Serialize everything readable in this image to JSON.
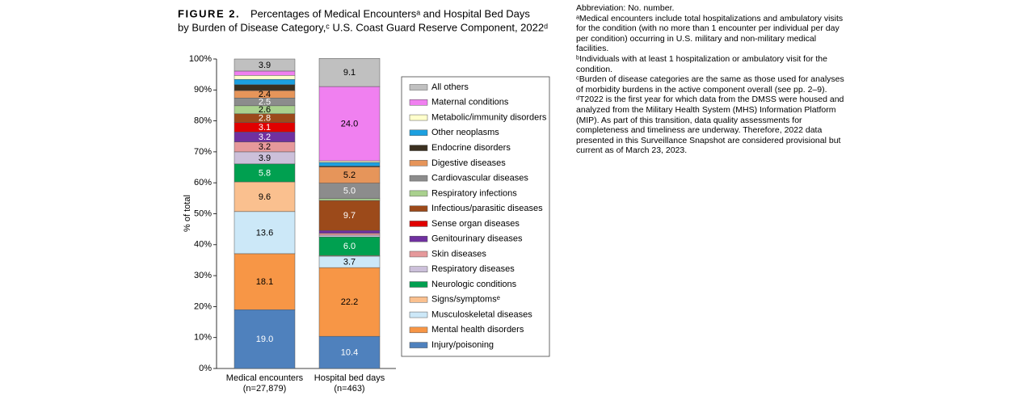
{
  "chart_data": {
    "type": "stacked_bar",
    "figure_label": "FIGURE 2.",
    "title_lines": [
      "Percentages of Medical Encountersᵃ and Hospital Bed Days",
      "by Burden of Disease Category,ᶜ U.S. Coast Guard Reserve Component, 2022ᵈ"
    ],
    "y_label": "% of total",
    "categories": [
      "Medical encounters",
      "Hospital bed days"
    ],
    "category_counts": [
      "(n=27,879)",
      "(n=463)"
    ],
    "ylim": [
      0,
      100
    ],
    "yticks": [
      {
        "value": 0,
        "label": "0%"
      },
      {
        "value": 10,
        "label": "10%"
      },
      {
        "value": 20,
        "label": "20%"
      },
      {
        "value": 30,
        "label": "30%"
      },
      {
        "value": 40,
        "label": "40%"
      },
      {
        "value": 50,
        "label": "50%"
      },
      {
        "value": 60,
        "label": "60%"
      },
      {
        "value": 70,
        "label": "70%"
      },
      {
        "value": 80,
        "label": "80%"
      },
      {
        "value": 90,
        "label": "90%"
      },
      {
        "value": 100,
        "label": "100%"
      }
    ],
    "series": [
      {
        "name": "Injury/poisoning",
        "color": "#4f81bd",
        "values": [
          19.0,
          10.4
        ],
        "value_labels": [
          "19.0",
          "10.4"
        ]
      },
      {
        "name": "Mental health disorders",
        "color": "#f79646",
        "values": [
          18.1,
          22.2
        ],
        "value_labels": [
          "18.1",
          "22.2"
        ]
      },
      {
        "name": "Musculoskeletal diseases",
        "color": "#cce8f8",
        "values": [
          13.6,
          3.7
        ],
        "value_labels": [
          "13.6",
          "3.7"
        ]
      },
      {
        "name": "Signs/symptomsᵉ",
        "color": "#fac08f",
        "values": [
          9.6,
          0.2
        ],
        "value_labels": [
          "9.6",
          null
        ]
      },
      {
        "name": "Neurologic conditions",
        "color": "#00a050",
        "values": [
          5.8,
          6.0
        ],
        "value_labels": [
          "5.8",
          "6.0"
        ]
      },
      {
        "name": "Respiratory diseases",
        "color": "#ccc0da",
        "values": [
          3.9,
          0.6
        ],
        "value_labels": [
          "3.9",
          null
        ]
      },
      {
        "name": "Skin diseases",
        "color": "#e6999b",
        "values": [
          3.2,
          0.6
        ],
        "value_labels": [
          "3.2",
          null
        ]
      },
      {
        "name": "Genitourinary diseases",
        "color": "#7030a0",
        "values": [
          3.2,
          0.9
        ],
        "value_labels": [
          "3.2",
          null
        ]
      },
      {
        "name": "Sense organ diseases",
        "color": "#e00000",
        "values": [
          3.1,
          0.0
        ],
        "value_labels": [
          "3.1",
          null
        ]
      },
      {
        "name": "Infectious/parasitic diseases",
        "color": "#9c4a1a",
        "values": [
          2.8,
          9.7
        ],
        "value_labels": [
          "2.8",
          "9.7"
        ]
      },
      {
        "name": "Respiratory infections",
        "color": "#a9d18e",
        "values": [
          2.6,
          0.6
        ],
        "value_labels": [
          "2.6",
          null
        ]
      },
      {
        "name": "Cardiovascular diseases",
        "color": "#8c8c8c",
        "values": [
          2.5,
          5.0
        ],
        "value_labels": [
          "2.5",
          "5.0"
        ]
      },
      {
        "name": "Digestive diseases",
        "color": "#e6955a",
        "values": [
          2.4,
          5.2
        ],
        "value_labels": [
          "2.4",
          "5.2"
        ]
      },
      {
        "name": "Endocrine disorders",
        "color": "#3b3020",
        "values": [
          1.9,
          0.3
        ],
        "value_labels": [
          null,
          null
        ]
      },
      {
        "name": "Other neoplasms",
        "color": "#1ca0e0",
        "values": [
          1.7,
          1.2
        ],
        "value_labels": [
          null,
          null
        ]
      },
      {
        "name": "Metabolic/immunity disorders",
        "color": "#ffffcc",
        "values": [
          1.3,
          0.5
        ],
        "value_labels": [
          null,
          null
        ]
      },
      {
        "name": "Maternal conditions",
        "color": "#f080f0",
        "values": [
          1.4,
          24.0
        ],
        "value_labels": [
          null,
          "24.0"
        ]
      },
      {
        "name": "All others",
        "color": "#c0c0c0",
        "values": [
          3.9,
          9.1
        ],
        "value_labels": [
          "3.9",
          "9.1"
        ]
      }
    ],
    "notes": [
      "Abbreviation: No. number.",
      "ᵃMedical encounters include total hospitalizations and ambulatory visits for the condition (with no more than 1 encounter per individual per day per condition) occurring in U.S. military and non-military medical facilities.",
      "ᵇIndividuals with at least 1 hospitalization or ambulatory visit for the condition.",
      "ᶜBurden of disease categories are the same as those used for analyses of morbidity burdens in the active component overall (see pp. 2–9).",
      "ᵈT2022 is the first year for which data from the DMSS were housed and analyzed from the Military Health System (MHS) Information Platform (MIP). As part of this transition, data quality assessments for completeness and timeliness are underway. Therefore, 2022 data presented in this Surveillance Snapshot are considered provisional but current as of March 23, 2023."
    ]
  }
}
